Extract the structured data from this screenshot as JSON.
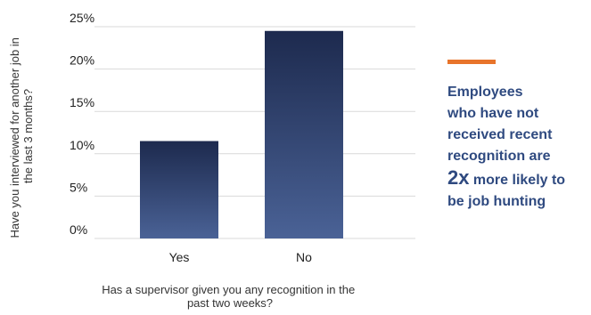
{
  "chart_data": {
    "type": "bar",
    "categories": [
      "Yes",
      "No"
    ],
    "values": [
      11.5,
      24.5
    ],
    "ylim": [
      0,
      25
    ],
    "yticks": [
      0,
      5,
      10,
      15,
      20,
      25
    ],
    "ytick_labels": [
      "0%",
      "5%",
      "10%",
      "15%",
      "20%",
      "25%"
    ],
    "xlabel": "Has a supervisor given you any recognition in the past two weeks?",
    "xlabel_lines": [
      "Has a supervisor given you any recognition in the",
      "past two weeks?"
    ],
    "ylabel": "Have you interviewed for another job in the last 3 months?",
    "ylabel_lines": [
      "Have you interviewed for another job in",
      "the last 3 months?"
    ],
    "grid": true,
    "bar_color_top": "#1d2a4e",
    "bar_color_bottom": "#4a6296",
    "grid_color": "#d9d9d9"
  },
  "callout": {
    "accent_color": "#e8742b",
    "text_color": "#2f4a80",
    "line1": "Employees",
    "line2": "who have not",
    "line3": "received recent",
    "line4": "recognition are",
    "emphasis": "2x",
    "line5_rest": " more likely to",
    "line6": "be job hunting"
  }
}
